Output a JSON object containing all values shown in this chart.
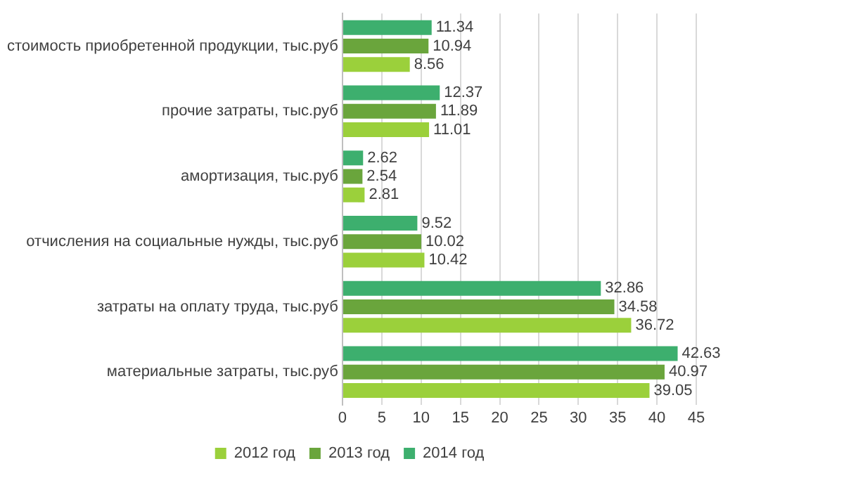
{
  "chart_data": {
    "type": "bar",
    "orientation": "horizontal",
    "categories": [
      "стоимость приобретенной продукции, тыс.руб",
      "прочие затраты, тыс.руб",
      "амортизация, тыс.руб",
      "отчисления на социальные нужды, тыс.руб",
      "затраты на оплату труда, тыс.руб",
      "материальные затраты, тыс.руб"
    ],
    "series": [
      {
        "name": "2012 год",
        "color": "#9bd03b",
        "values": [
          8.56,
          11.01,
          2.81,
          10.42,
          36.72,
          39.05
        ]
      },
      {
        "name": "2013 год",
        "color": "#6aa53c",
        "values": [
          10.94,
          11.89,
          2.54,
          10.02,
          34.58,
          40.97
        ]
      },
      {
        "name": "2014 год",
        "color": "#3daf6e",
        "values": [
          11.34,
          12.37,
          2.62,
          9.52,
          32.86,
          42.63
        ]
      }
    ],
    "xlim": [
      0,
      45
    ],
    "xticks": [
      0,
      5,
      10,
      15,
      20,
      25,
      30,
      35,
      40,
      45
    ],
    "grid": "x",
    "legend": "bottom",
    "data_labels": true
  }
}
